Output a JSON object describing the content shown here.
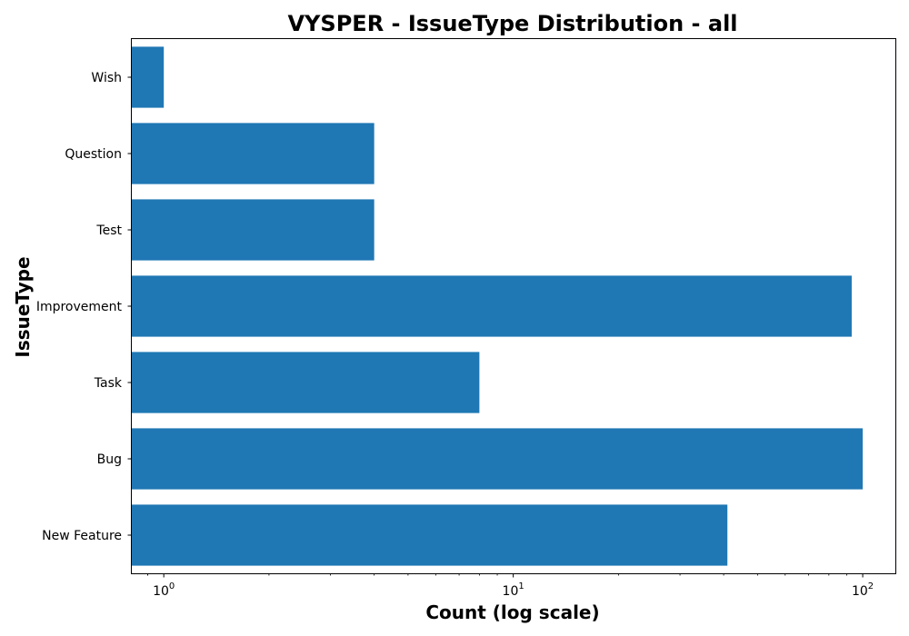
{
  "chart_data": {
    "type": "bar",
    "orientation": "horizontal",
    "title": "VYSPER - IssueType Distribution - all",
    "xlabel": "Count (log scale)",
    "ylabel": "IssueType",
    "xscale": "log",
    "xlim": [
      0.81,
      124
    ],
    "x_major_ticks": [
      {
        "value": 1,
        "base": "10",
        "exp": "0"
      },
      {
        "value": 10,
        "base": "10",
        "exp": "1"
      },
      {
        "value": 100,
        "base": "10",
        "exp": "2"
      }
    ],
    "categories": [
      "New Feature",
      "Bug",
      "Task",
      "Improvement",
      "Test",
      "Question",
      "Wish"
    ],
    "values": [
      41,
      100,
      8,
      93,
      4,
      4,
      1
    ],
    "bar_color": "#1f77b4",
    "grid": false
  }
}
